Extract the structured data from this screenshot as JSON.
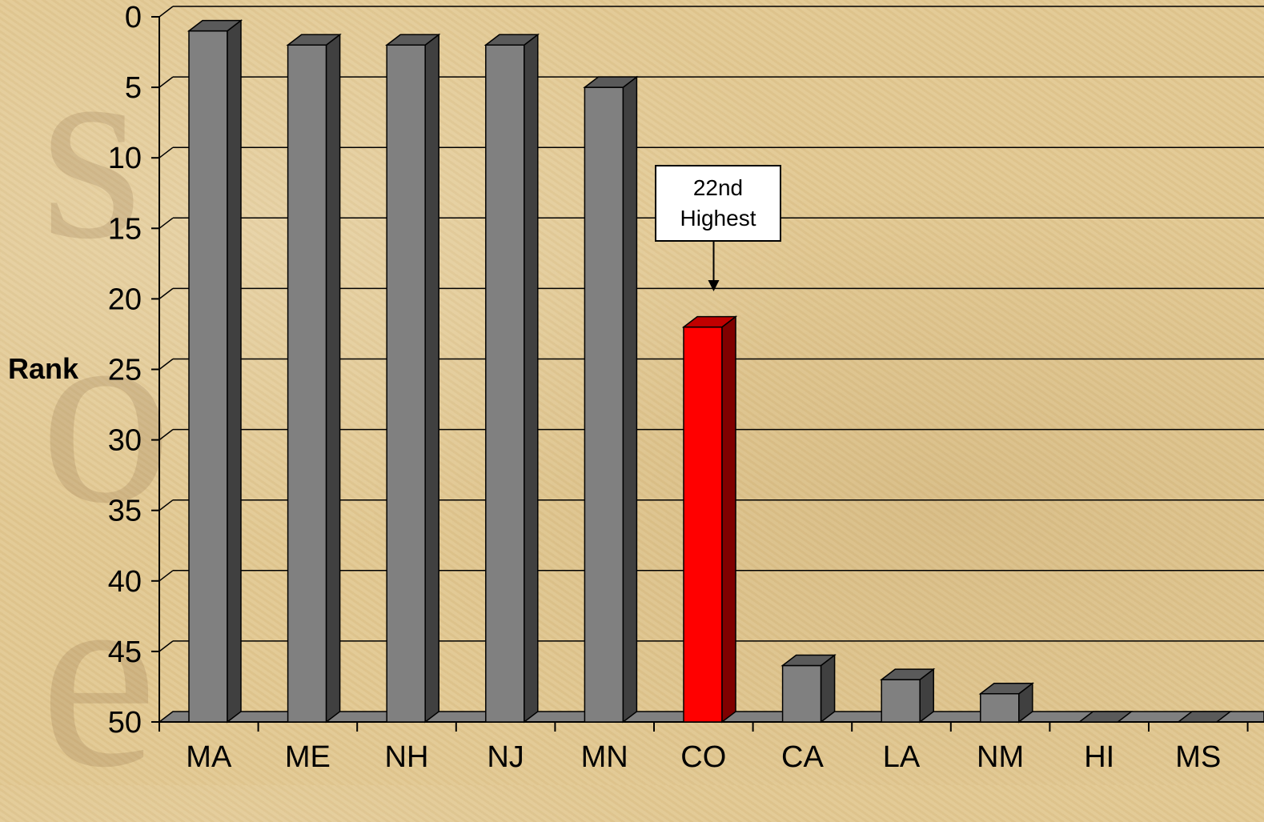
{
  "watermark": {
    "letters": [
      "s",
      "o",
      "e"
    ]
  },
  "callout": {
    "line1": "22nd",
    "line2": "Highest",
    "target_category": "CO"
  },
  "chart_data": {
    "type": "bar",
    "style": "3d-column",
    "ylabel": "Rank",
    "xlabel": "",
    "ylim": [
      0,
      50
    ],
    "y_axis_inverted": true,
    "y_ticks": [
      0,
      5,
      10,
      15,
      20,
      25,
      30,
      35,
      40,
      45,
      50
    ],
    "categories": [
      "MA",
      "ME",
      "NH",
      "NJ",
      "MN",
      "CO",
      "CA",
      "LA",
      "NM",
      "HI",
      "MS"
    ],
    "values": [
      1,
      2,
      2,
      2,
      5,
      22,
      46,
      47,
      48,
      50,
      50
    ],
    "grid": true,
    "colors": {
      "bar": "#808080",
      "bar_side": "#404040",
      "bar_top": "#5a5a5a",
      "highlight": "#ff0000",
      "highlight_side": "#800000",
      "highlight_top": "#c00000",
      "floor": "#808080",
      "gridline": "#000000"
    },
    "highlight_category": "CO"
  }
}
